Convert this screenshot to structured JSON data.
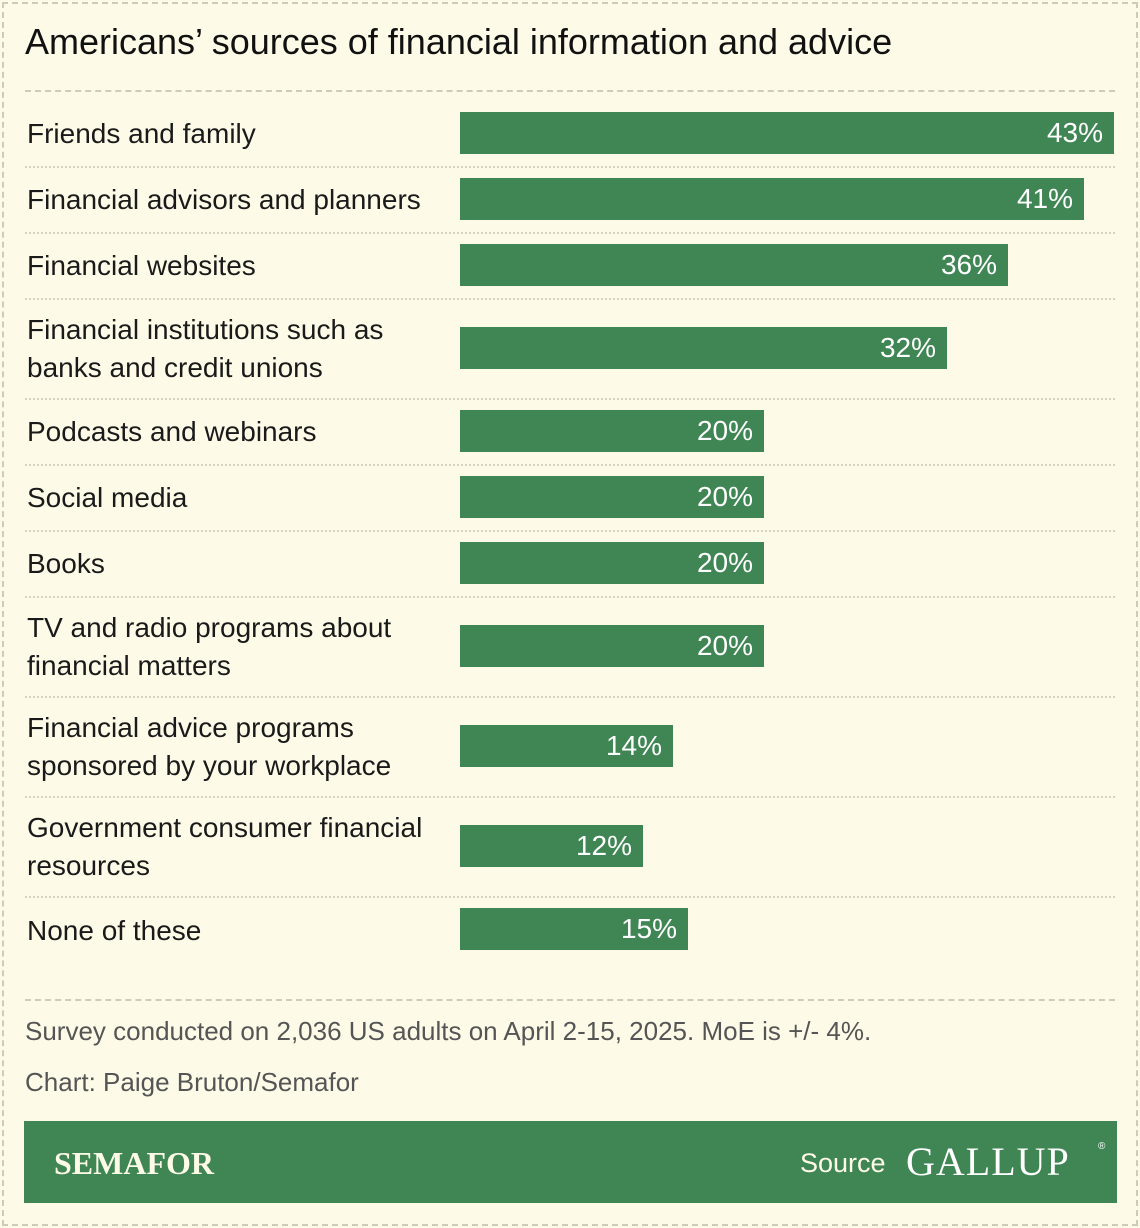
{
  "chart_data": {
    "type": "bar",
    "orientation": "horizontal",
    "title": "Americans’ sources of financial information and advice",
    "categories": [
      "Friends and family",
      "Financial advisors and planners",
      "Financial websites",
      "Financial institutions such as banks and credit unions",
      "Podcasts and webinars",
      "Social media",
      "Books",
      "TV and radio programs about financial matters",
      "Financial advice programs sponsored by your workplace",
      "Government consumer financial resources",
      "None of these"
    ],
    "values": [
      43,
      41,
      36,
      32,
      20,
      20,
      20,
      20,
      14,
      12,
      15
    ],
    "value_labels": [
      "43%",
      "41%",
      "36%",
      "32%",
      "20%",
      "20%",
      "20%",
      "20%",
      "14%",
      "12%",
      "15%"
    ],
    "xlim": [
      0,
      43
    ],
    "bar_color": "#3f8654",
    "grid": false,
    "legend": "none"
  },
  "notes": {
    "survey": "Survey conducted on 2,036 US adults on April 2-15, 2025. MoE is +/- 4%.",
    "credit": "Chart: Paige Bruton/Semafor"
  },
  "footer": {
    "brand": "SEMAFOR",
    "source_label": "Source",
    "source_logo": "GALLUP",
    "background": "#3f8654"
  }
}
